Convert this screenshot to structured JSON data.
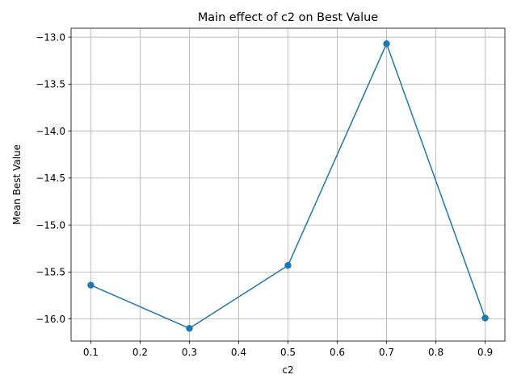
{
  "chart_data": {
    "type": "line",
    "title": "Main effect of c2 on Best Value",
    "xlabel": "c2",
    "ylabel": "Mean Best Value",
    "x": [
      0.1,
      0.3,
      0.5,
      0.7,
      0.9
    ],
    "series": [
      {
        "values": [
          -15.64,
          -16.1,
          -15.43,
          -13.07,
          -15.99
        ],
        "color": "#1f77b4",
        "marker": "circle"
      }
    ],
    "xlim": [
      0.06,
      0.94
    ],
    "ylim": [
      -16.235,
      -12.905
    ],
    "xticks": [
      0.1,
      0.2,
      0.3,
      0.4,
      0.5,
      0.6,
      0.7,
      0.8,
      0.9
    ],
    "xtick_labels": [
      "0.1",
      "0.2",
      "0.3",
      "0.4",
      "0.5",
      "0.6",
      "0.7",
      "0.8",
      "0.9"
    ],
    "yticks": [
      -16.0,
      -15.5,
      -15.0,
      -14.5,
      -14.0,
      -13.5,
      -13.0
    ],
    "ytick_labels": [
      "−16.0",
      "−15.5",
      "−15.0",
      "−14.5",
      "−14.0",
      "−13.5",
      "−13.0"
    ],
    "grid": true,
    "legend": false
  }
}
